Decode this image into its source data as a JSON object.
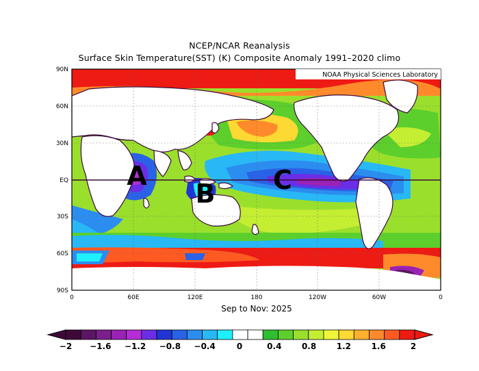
{
  "header": {
    "title": "NCEP/NCAR Reanalysis",
    "subtitle": "Surface Skin Temperature(SST) (K) Composite Anomaly 1991–2020 climo"
  },
  "map": {
    "credit": "NOAA Physical Sciences Laboratory",
    "period_label": "Sep to Nov: 2025",
    "lat_ticks": [
      "90N",
      "60N",
      "30N",
      "EQ",
      "30S",
      "60S",
      "90S"
    ],
    "lon_ticks": [
      "0",
      "60E",
      "120E",
      "180",
      "120W",
      "60W",
      "0"
    ],
    "region_labels": [
      "A",
      "B",
      "C"
    ],
    "equator_line": true
  },
  "colorbar": {
    "tick_labels": [
      "−2",
      "−1.6",
      "−1.2",
      "−0.8",
      "−0.4",
      "0",
      "0.4",
      "0.8",
      "1.2",
      "1.6",
      "2"
    ],
    "bins": [
      "#3e0a3a",
      "#5c1663",
      "#7a1f8c",
      "#9a22b4",
      "#b62cd6",
      "#6a2ee6",
      "#2035d4",
      "#2962e6",
      "#2c8df0",
      "#28b8f5",
      "#1ff0ff",
      "#ffffff",
      "#ffffff",
      "#2fbe2f",
      "#5ccf2c",
      "#9adf2c",
      "#c4ee32",
      "#f0f53a",
      "#ffd933",
      "#ffb030",
      "#ff8a2b",
      "#ff5a21",
      "#ee1a14"
    ]
  }
}
